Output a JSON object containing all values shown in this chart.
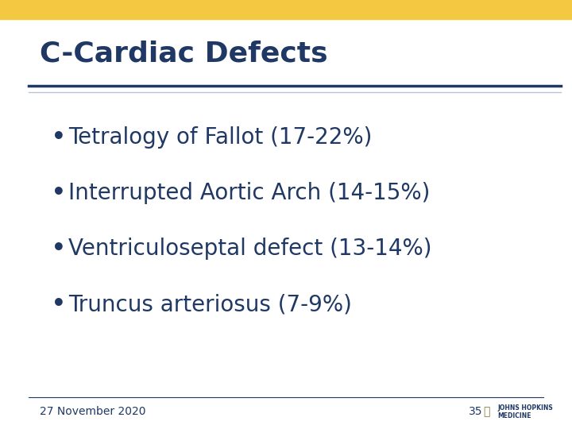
{
  "title": "C-Cardiac Defects",
  "title_color": "#1F3864",
  "bullet_items": [
    "Tetralogy of Fallot (17-22%)",
    "Interrupted Aortic Arch (14-15%)",
    "Ventriculoseptal defect (13-14%)",
    "Truncus arteriosus (7-9%)"
  ],
  "bullet_color": "#1F3864",
  "background_color": "#FFFFFF",
  "top_bar_color": "#F5C842",
  "divider_color_top": "#1F3864",
  "divider_color_bottom": "#B8C4D8",
  "footer_text": "27 November 2020",
  "page_number": "35",
  "footer_color": "#1F3864",
  "title_fontsize": 26,
  "bullet_fontsize": 20,
  "footer_fontsize": 10
}
